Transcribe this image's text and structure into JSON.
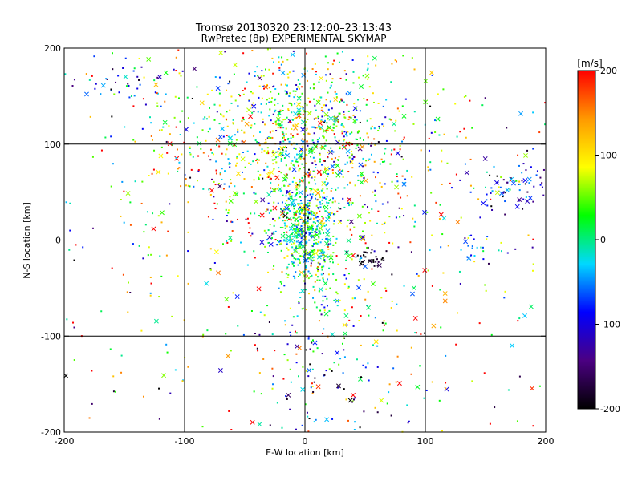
{
  "chart_data": {
    "type": "scatter",
    "title": "Tromsø 20130320 23:12:00–23:13:43",
    "subtitle": "RwPretec (8p) EXPERIMENTAL SKYMAP",
    "xlabel": "E-W location [km]",
    "ylabel": "N-S location [km]",
    "xlim": [
      -200,
      200
    ],
    "ylim": [
      -200,
      200
    ],
    "x_ticks": [
      "-200",
      "-100",
      "0",
      "100",
      "200"
    ],
    "y_ticks": [
      "-200",
      "-100",
      "0",
      "100",
      "200"
    ],
    "grid": true,
    "markers": [
      "dot",
      "x"
    ],
    "colorbar": {
      "label": "[m/s]",
      "range": [
        -200,
        200
      ],
      "ticks": [
        "200",
        "100",
        "0",
        "-100",
        "-200"
      ],
      "colormap": "rainbow with black at low end",
      "colors": [
        "#000000",
        "#4b0082",
        "#0000ff",
        "#00d8ff",
        "#00ff00",
        "#ffff00",
        "#ff9900",
        "#ff0000"
      ]
    },
    "clusters": [
      {
        "x": 0,
        "y": 15,
        "spread_x": 12,
        "spread_y": 25,
        "count": 420,
        "velocity_mean": 0,
        "velocity_spread": 60
      },
      {
        "x": 5,
        "y": 120,
        "spread_x": 25,
        "spread_y": 35,
        "count": 380,
        "velocity_mean": 20,
        "velocity_spread": 90
      },
      {
        "x": -40,
        "y": 100,
        "spread_x": 50,
        "spread_y": 45,
        "count": 420,
        "velocity_mean": 60,
        "velocity_spread": 90
      },
      {
        "x": 40,
        "y": 80,
        "spread_x": 45,
        "spread_y": 55,
        "count": 260,
        "velocity_mean": 70,
        "velocity_spread": 90
      },
      {
        "x": 10,
        "y": -30,
        "spread_x": 20,
        "spread_y": 30,
        "count": 140,
        "velocity_mean": 20,
        "velocity_spread": 60
      },
      {
        "x": 20,
        "y": -140,
        "spread_x": 35,
        "spread_y": 35,
        "count": 110,
        "velocity_mean": -40,
        "velocity_spread": 120
      },
      {
        "x": -150,
        "y": 165,
        "spread_x": 25,
        "spread_y": 10,
        "count": 40,
        "velocity_mean": -80,
        "velocity_spread": 70
      },
      {
        "x": 180,
        "y": 60,
        "spread_x": 20,
        "spread_y": 15,
        "count": 80,
        "velocity_mean": -110,
        "velocity_spread": 50
      },
      {
        "x": 55,
        "y": -20,
        "spread_x": 7,
        "spread_y": 6,
        "count": 35,
        "velocity_mean": -190,
        "velocity_spread": 15
      },
      {
        "x": 145,
        "y": -15,
        "spread_x": 15,
        "spread_y": 10,
        "count": 20,
        "velocity_mean": -60,
        "velocity_spread": 40
      },
      {
        "x": 0,
        "y": 0,
        "spread_x": 140,
        "spread_y": 140,
        "count": 700,
        "velocity_mean": 60,
        "velocity_spread": 140
      }
    ]
  }
}
